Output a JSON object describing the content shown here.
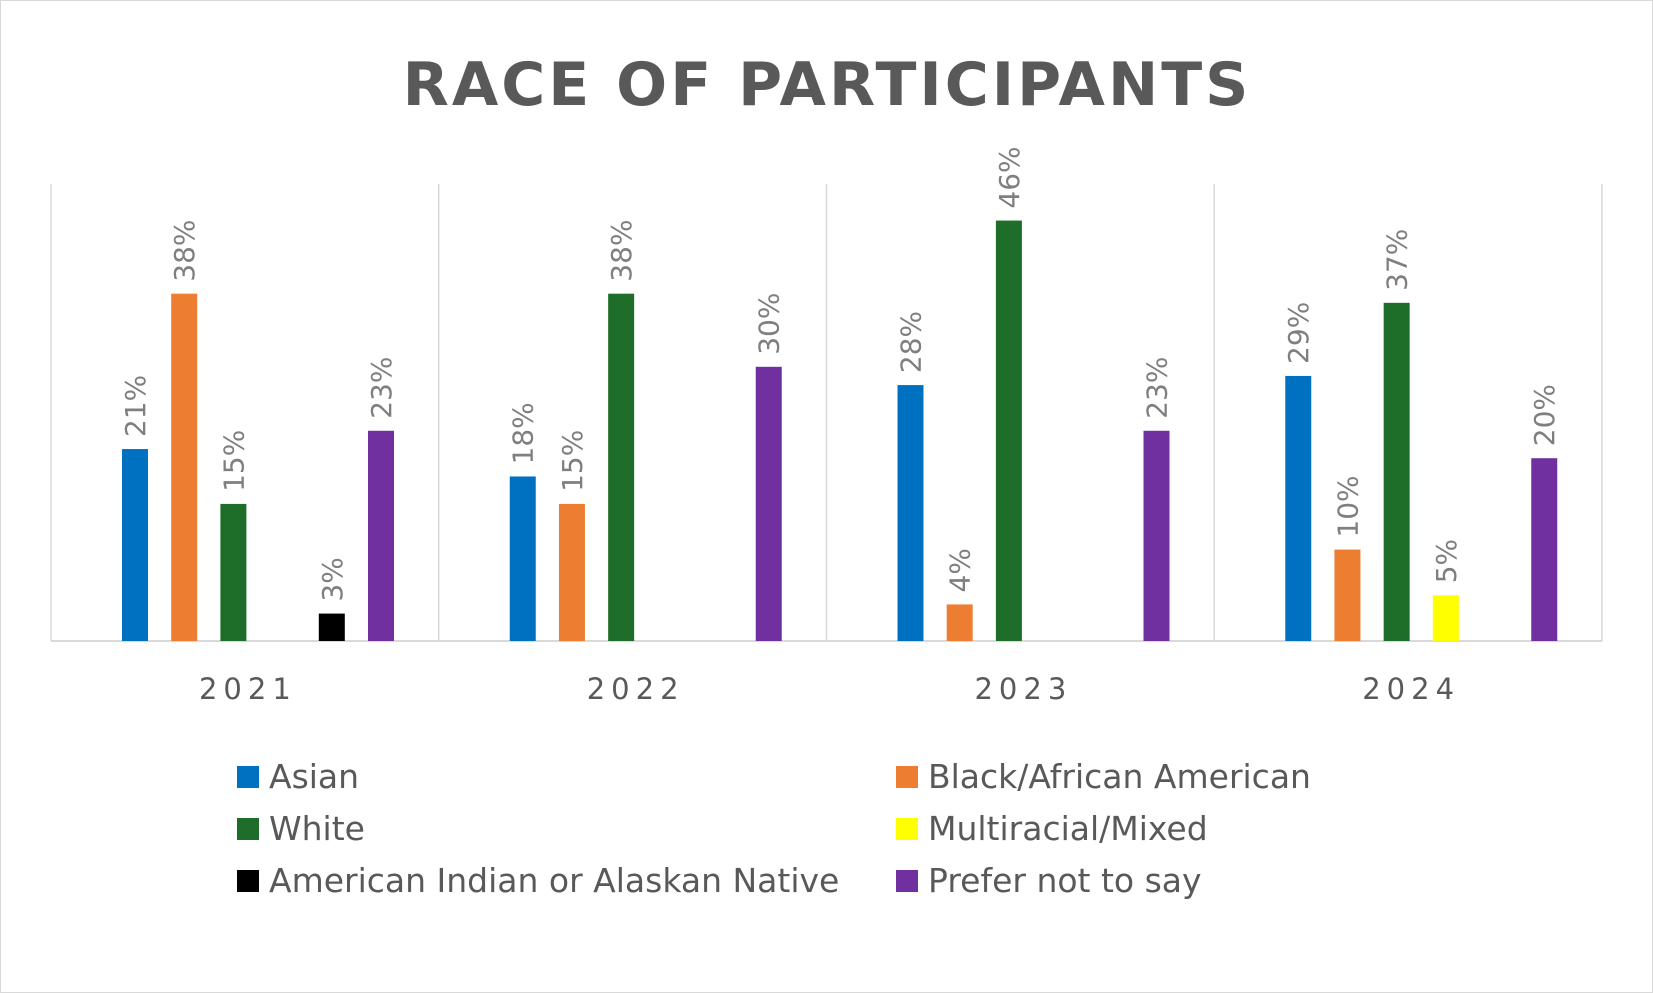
{
  "chart_data": {
    "type": "bar",
    "title": "RACE OF PARTICIPANTS",
    "xlabel": "",
    "ylabel": "",
    "categories": [
      "2021",
      "2022",
      "2023",
      "2024"
    ],
    "ylim": [
      0,
      50
    ],
    "grid": "vertical separators between categories",
    "legend_position": "bottom",
    "series": [
      {
        "name": "Asian",
        "color": "#0070C0",
        "values": [
          21,
          18,
          28,
          29
        ],
        "labels": [
          "21%",
          "18%",
          "28%",
          "29%"
        ]
      },
      {
        "name": "Black/African American",
        "color": "#ED7D31",
        "values": [
          38,
          15,
          4,
          10
        ],
        "labels": [
          "38%",
          "15%",
          "4%",
          "10%"
        ]
      },
      {
        "name": "White",
        "color": "#1E6E2A",
        "values": [
          15,
          38,
          46,
          37
        ],
        "labels": [
          "15%",
          "38%",
          "46%",
          "37%"
        ]
      },
      {
        "name": "Multiracial/Mixed",
        "color": "#FFFF00",
        "values": [
          null,
          null,
          null,
          5
        ],
        "labels": [
          "",
          "",
          "",
          "5%"
        ]
      },
      {
        "name": "American Indian or Alaskan Native",
        "color": "#000000",
        "values": [
          3,
          null,
          null,
          null
        ],
        "labels": [
          "3%",
          "",
          "",
          ""
        ]
      },
      {
        "name": "Prefer not to say",
        "color": "#7030A0",
        "values": [
          23,
          30,
          23,
          20
        ],
        "labels": [
          "23%",
          "30%",
          "23%",
          "20%"
        ]
      }
    ],
    "legend_order": [
      "Asian",
      "Black/African American",
      "White",
      "Multiracial/Mixed",
      "American Indian or Alaskan Native",
      "Prefer not to say"
    ]
  }
}
